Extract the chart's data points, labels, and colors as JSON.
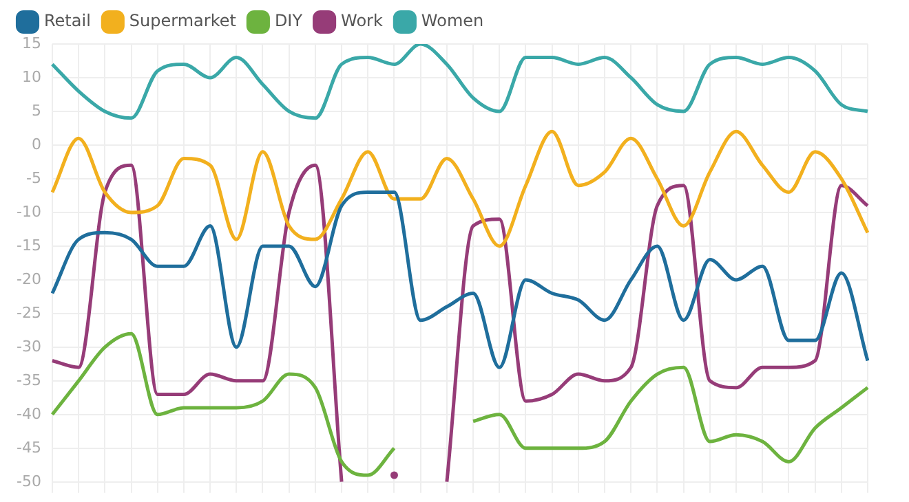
{
  "chart_data": {
    "type": "line",
    "categories": [
      null,
      null,
      null,
      null,
      null,
      null,
      null,
      null,
      null,
      null,
      null,
      null,
      null,
      null,
      null,
      null,
      null,
      null,
      null,
      null,
      null,
      null,
      null,
      null,
      null,
      null,
      null,
      null,
      null,
      null,
      null,
      null
    ],
    "series": [
      {
        "name": "Retail",
        "color": "#1f6e9c",
        "values": [
          -22,
          -14,
          -13,
          -14,
          -18,
          -18,
          -12,
          -30,
          -15,
          -15,
          -21,
          -9,
          -7,
          -7,
          -26,
          -24,
          -22,
          -33,
          -20,
          -22,
          -23,
          -26,
          -20,
          -15,
          -26,
          -17,
          -20,
          -18,
          -29,
          -29,
          -19,
          -32
        ]
      },
      {
        "name": "Supermarket",
        "color": "#f2b01e",
        "values": [
          -7,
          1,
          -7,
          -10,
          -9,
          -2,
          -3,
          -14,
          -1,
          -12,
          -14,
          -8,
          -1,
          -8,
          -8,
          -2,
          -8,
          -15,
          -6,
          2,
          -6,
          -4,
          1,
          -5,
          -12,
          -4,
          2,
          -3,
          -7,
          -1,
          -5,
          -13
        ]
      },
      {
        "name": "DIY",
        "color": "#6db33f",
        "values": [
          -40,
          -35,
          -30,
          -28,
          -40,
          -39,
          -39,
          -39,
          -38,
          -34,
          -36,
          -47,
          -49,
          -45,
          null,
          null,
          -41,
          -40,
          -45,
          -45,
          -45,
          -44,
          -38,
          -34,
          -33,
          -44,
          -43,
          -44,
          -47,
          -42,
          -39,
          -36
        ]
      },
      {
        "name": "Work",
        "color": "#963c78",
        "values": [
          -32,
          -33,
          -7,
          -3,
          -37,
          -37,
          -34,
          -35,
          -35,
          -10,
          -3,
          -50,
          null,
          -49,
          null,
          -50,
          -12,
          -11,
          -38,
          -37,
          -34,
          -35,
          -33,
          -9,
          -6,
          -35,
          -36,
          -33,
          -33,
          -32,
          -6,
          -9
        ]
      },
      {
        "name": "Women",
        "color": "#3aa8a8",
        "values": [
          12,
          8,
          5,
          4,
          11,
          12,
          10,
          13,
          9,
          5,
          4,
          12,
          13,
          12,
          15,
          12,
          7,
          5,
          13,
          13,
          12,
          13,
          10,
          6,
          5,
          12,
          13,
          12,
          13,
          11,
          6,
          5
        ]
      }
    ],
    "ylim": [
      -50,
      15
    ],
    "yticks": [
      15,
      10,
      5,
      0,
      -5,
      -10,
      -15,
      -20,
      -25,
      -30,
      -35,
      -40,
      -45,
      -50
    ],
    "grid": true,
    "legend": "top left",
    "tick_labels": "y",
    "marker": "none",
    "line_style": "solid"
  }
}
